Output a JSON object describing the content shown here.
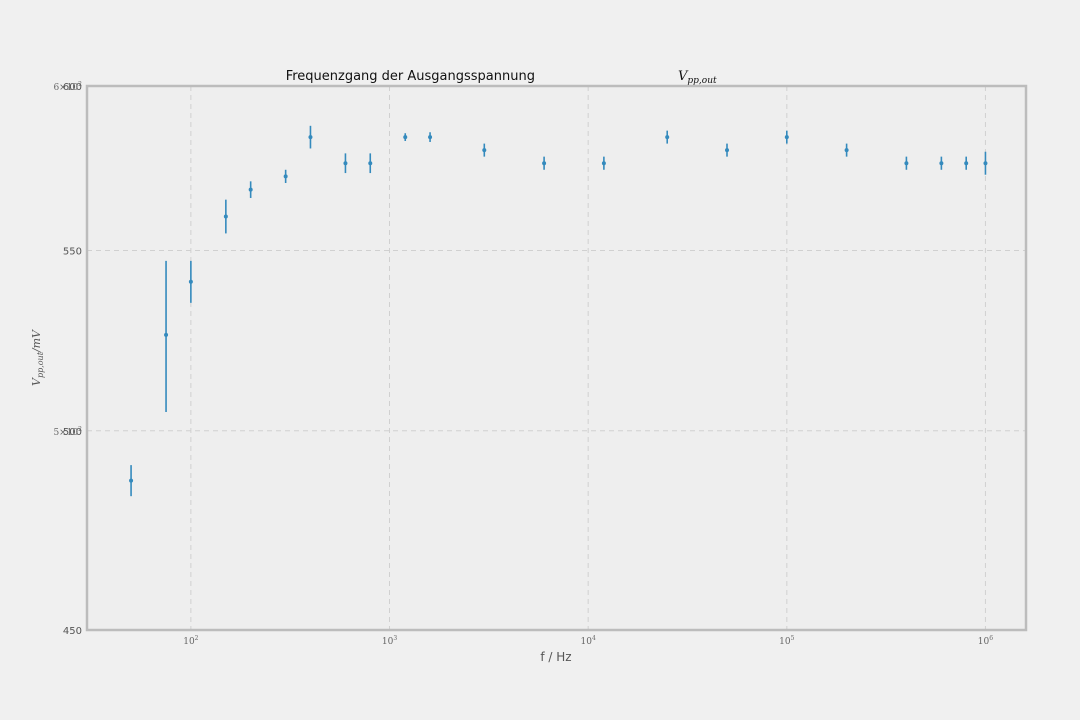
{
  "chart_data": {
    "type": "scatter",
    "title": "Frequenzgang der Ausgangsspannung",
    "title_math": {
      "base": "V",
      "sub": "pp,out"
    },
    "xlabel": "f / Hz",
    "ylabel": {
      "base": "V",
      "sub": "pp,out",
      "suffix": "/mV"
    },
    "xscale": "log",
    "yscale": "log",
    "xlim": [
      30,
      1600000
    ],
    "ylim": [
      450,
      600
    ],
    "grid": true,
    "x_ticks": [
      {
        "value": 100,
        "base": "10",
        "exp": "2"
      },
      {
        "value": 1000,
        "base": "10",
        "exp": "3"
      },
      {
        "value": 10000,
        "base": "10",
        "exp": "4"
      },
      {
        "value": 100000,
        "base": "10",
        "exp": "5"
      },
      {
        "value": 1000000,
        "base": "10",
        "exp": "6"
      }
    ],
    "y_ticks": [
      {
        "value": 450,
        "label": "450"
      },
      {
        "value": 500,
        "label": "500"
      },
      {
        "value": 550,
        "label": "550"
      },
      {
        "value": 600,
        "label": "600"
      }
    ],
    "y_ticks_overlay": [
      {
        "value": 500,
        "base": "5×10",
        "exp": "2"
      },
      {
        "value": 600,
        "base": "6×10",
        "exp": "2"
      }
    ],
    "series": [
      {
        "marker_color": "#348abd",
        "x": [
          50,
          75,
          100,
          150,
          200,
          300,
          400,
          600,
          800,
          1200,
          1600,
          3000,
          6000,
          12000,
          25000,
          50000,
          100000,
          200000,
          400000,
          600000,
          800000,
          1000000
        ],
        "y": [
          487,
          526,
          541,
          560,
          568,
          572,
          584,
          576,
          576,
          584,
          584,
          580,
          576,
          576,
          584,
          580,
          584,
          580,
          576,
          576,
          576,
          576
        ],
        "yerr": [
          4,
          21,
          6,
          5,
          2.5,
          2,
          3.5,
          3,
          3,
          1.2,
          1.5,
          2,
          2,
          2,
          2,
          2,
          2,
          2,
          2,
          2,
          2,
          3.5
        ]
      }
    ]
  },
  "colors": {
    "background": "#f0f0f0",
    "axes_face": "#eeeeee",
    "axes_edge": "#bcbcbc",
    "grid": "#d0d0d0",
    "marker": "#348abd"
  }
}
